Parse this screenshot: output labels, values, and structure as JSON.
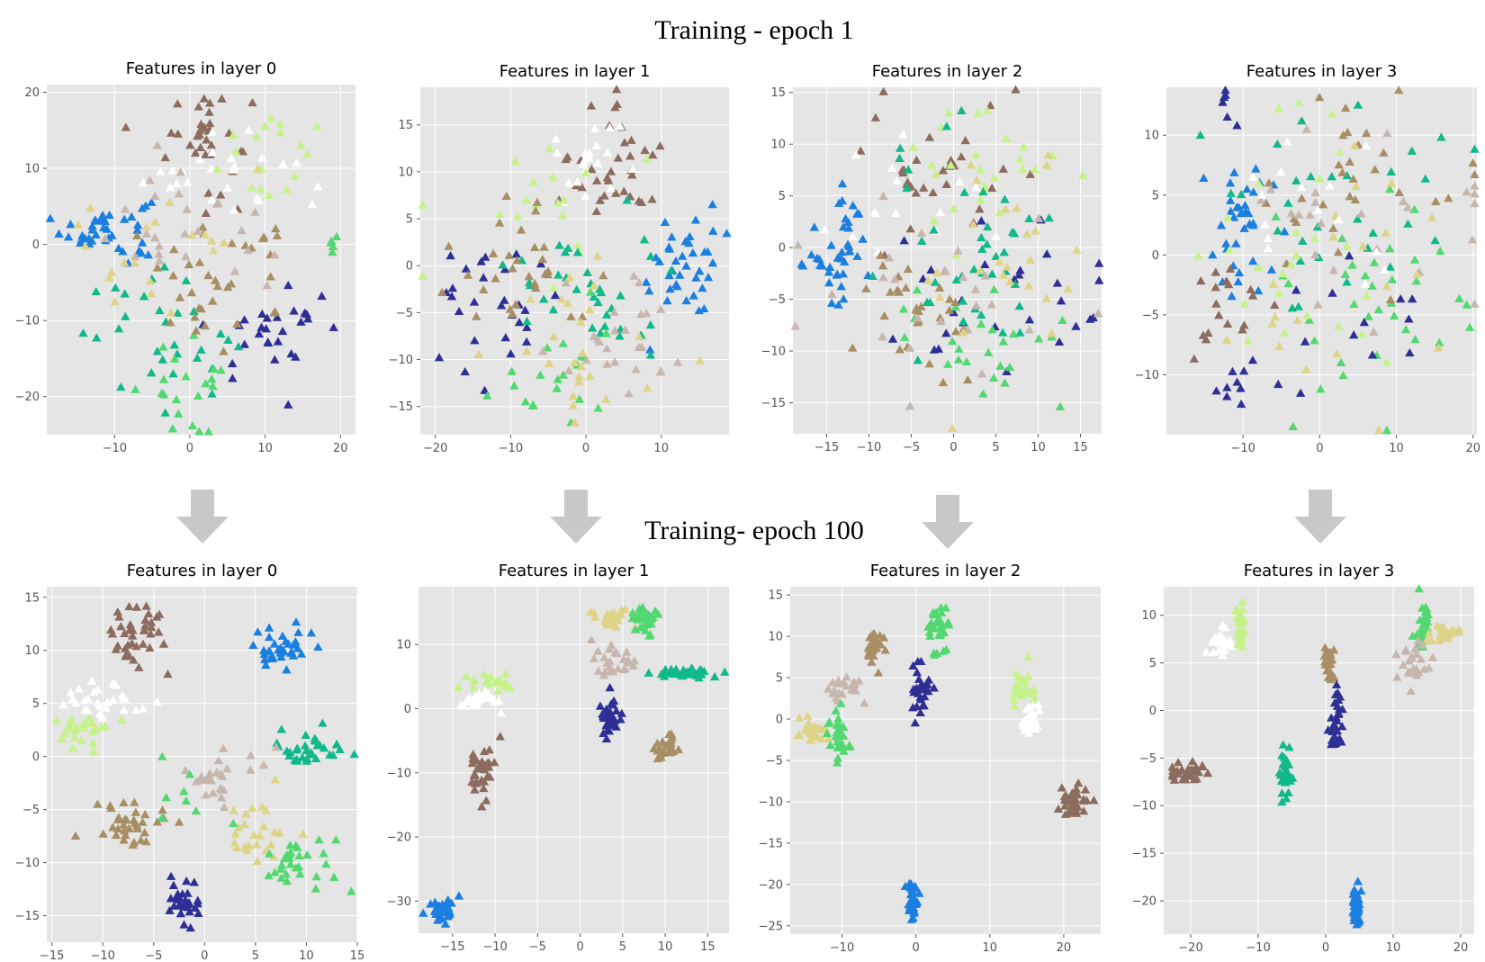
{
  "figure": {
    "top_title": "Training - epoch 1",
    "middle_title": "Training- epoch 100"
  },
  "colors": {
    "blue": "#1a7fe0",
    "navy": "#2e2f95",
    "teal": "#10b98a",
    "green": "#52d870",
    "lime": "#c6f28a",
    "white": "#ffffff",
    "sand": "#ddd486",
    "khaki": "#a88e64",
    "brown": "#8c6c5e",
    "taupe": "#c7b6ad"
  },
  "chart_data": [
    {
      "type": "scatter",
      "marker": "triangle",
      "title": "Features in layer 0",
      "epoch": 1,
      "xlim": [
        -19,
        22
      ],
      "ylim": [
        -25,
        21
      ],
      "xticks": [
        -10,
        0,
        10,
        20
      ],
      "yticks": [
        -20,
        -10,
        0,
        10,
        20
      ],
      "grid": true,
      "clusters": [
        {
          "color": "blue",
          "cx": -11,
          "cy": 2,
          "sx": 3.0,
          "sy": 2.2,
          "n": 40
        },
        {
          "color": "brown",
          "cx": 2,
          "cy": 14,
          "sx": 3.0,
          "sy": 3.5,
          "n": 35
        },
        {
          "color": "white",
          "cx": 4,
          "cy": 10,
          "sx": 5.0,
          "sy": 3.0,
          "n": 25
        },
        {
          "color": "lime",
          "cx": 10,
          "cy": 12,
          "sx": 4.0,
          "sy": 4.0,
          "n": 18
        },
        {
          "color": "navy",
          "cx": 11,
          "cy": -12,
          "sx": 4.5,
          "sy": 3.0,
          "n": 28
        },
        {
          "color": "teal",
          "cx": -4,
          "cy": -12,
          "sx": 5.0,
          "sy": 4.0,
          "n": 30
        },
        {
          "color": "green",
          "cx": 1,
          "cy": -19,
          "sx": 4.0,
          "sy": 3.0,
          "n": 20
        },
        {
          "color": "khaki",
          "cx": 4,
          "cy": -5,
          "sx": 6.0,
          "sy": 4.0,
          "n": 35
        },
        {
          "color": "taupe",
          "cx": -1,
          "cy": 1,
          "sx": 6.0,
          "sy": 4.0,
          "n": 25
        },
        {
          "color": "sand",
          "cx": -3,
          "cy": -1,
          "sx": 7.0,
          "sy": 5.0,
          "n": 20
        },
        {
          "color": "green",
          "cx": 19,
          "cy": 0.5,
          "sx": 0.6,
          "sy": 1.0,
          "n": 5
        }
      ]
    },
    {
      "type": "scatter",
      "marker": "triangle",
      "title": "Features in layer 1",
      "epoch": 1,
      "xlim": [
        -22,
        19
      ],
      "ylim": [
        -18,
        19
      ],
      "xticks": [
        -20,
        -10,
        0,
        10
      ],
      "yticks": [
        -15,
        -10,
        -5,
        0,
        5,
        10,
        15
      ],
      "grid": true,
      "clusters": [
        {
          "color": "blue",
          "cx": 13,
          "cy": 0,
          "sx": 2.5,
          "sy": 3.0,
          "n": 38
        },
        {
          "color": "brown",
          "cx": 4,
          "cy": 11,
          "sx": 3.0,
          "sy": 4.0,
          "n": 35
        },
        {
          "color": "white",
          "cx": 0,
          "cy": 11,
          "sx": 3.5,
          "sy": 2.5,
          "n": 20
        },
        {
          "color": "lime",
          "cx": -6,
          "cy": 8,
          "sx": 5.0,
          "sy": 4.0,
          "n": 18
        },
        {
          "color": "navy",
          "cx": -12,
          "cy": -5,
          "sx": 5.0,
          "sy": 4.0,
          "n": 28
        },
        {
          "color": "teal",
          "cx": 0,
          "cy": -3,
          "sx": 5.0,
          "sy": 4.0,
          "n": 35
        },
        {
          "color": "green",
          "cx": -5,
          "cy": -11,
          "sx": 4.5,
          "sy": 3.0,
          "n": 20
        },
        {
          "color": "khaki",
          "cx": -8,
          "cy": 0,
          "sx": 5.0,
          "sy": 3.5,
          "n": 30
        },
        {
          "color": "taupe",
          "cx": 3,
          "cy": -8,
          "sx": 6.0,
          "sy": 4.0,
          "n": 25
        },
        {
          "color": "sand",
          "cx": -1,
          "cy": -9,
          "sx": 6.0,
          "sy": 5.0,
          "n": 25
        }
      ]
    },
    {
      "type": "scatter",
      "marker": "triangle",
      "title": "Features in layer 2",
      "epoch": 1,
      "xlim": [
        -19,
        17.5
      ],
      "ylim": [
        -18,
        15.5
      ],
      "xticks": [
        -15,
        -10,
        -5,
        0,
        5,
        10,
        15
      ],
      "yticks": [
        -15,
        -10,
        -5,
        0,
        5,
        10,
        15
      ],
      "grid": true,
      "clusters": [
        {
          "color": "blue",
          "cx": -13,
          "cy": 0,
          "sx": 2.5,
          "sy": 3.0,
          "n": 40
        },
        {
          "color": "brown",
          "cx": -2,
          "cy": 8,
          "sx": 5.0,
          "sy": 4.0,
          "n": 30
        },
        {
          "color": "lime",
          "cx": 2,
          "cy": 6,
          "sx": 6.0,
          "sy": 4.0,
          "n": 25
        },
        {
          "color": "white",
          "cx": -6,
          "cy": 4,
          "sx": 5.0,
          "sy": 4.0,
          "n": 15
        },
        {
          "color": "navy",
          "cx": 7,
          "cy": -6,
          "sx": 6.0,
          "sy": 5.0,
          "n": 28
        },
        {
          "color": "teal",
          "cx": 2,
          "cy": 0,
          "sx": 6.0,
          "sy": 5.0,
          "n": 40
        },
        {
          "color": "green",
          "cx": 3,
          "cy": -10,
          "sx": 5.0,
          "sy": 3.0,
          "n": 25
        },
        {
          "color": "khaki",
          "cx": -5,
          "cy": -7,
          "sx": 4.0,
          "sy": 3.5,
          "n": 30
        },
        {
          "color": "taupe",
          "cx": 0,
          "cy": -4,
          "sx": 8.0,
          "sy": 5.0,
          "n": 25
        },
        {
          "color": "sand",
          "cx": 6,
          "cy": -1,
          "sx": 6.0,
          "sy": 5.0,
          "n": 25
        }
      ]
    },
    {
      "type": "scatter",
      "marker": "triangle",
      "title": "Features in layer 3",
      "epoch": 1,
      "xlim": [
        -20,
        20.5
      ],
      "ylim": [
        -15,
        14
      ],
      "xticks": [
        -10,
        0,
        10,
        20
      ],
      "yticks": [
        -10,
        -5,
        0,
        5,
        10
      ],
      "grid": true,
      "clusters": [
        {
          "color": "blue",
          "cx": -11,
          "cy": 2,
          "sx": 2.5,
          "sy": 3.0,
          "n": 35
        },
        {
          "color": "navy",
          "cx": -11,
          "cy": -11,
          "sx": 2.0,
          "sy": 1.5,
          "n": 10
        },
        {
          "color": "navy",
          "cx": -12,
          "cy": 12,
          "sx": 1.0,
          "sy": 1.0,
          "n": 6
        },
        {
          "color": "brown",
          "cx": -13,
          "cy": -6,
          "sx": 3.0,
          "sy": 3.0,
          "n": 18
        },
        {
          "color": "teal",
          "cx": 3,
          "cy": 5,
          "sx": 8.0,
          "sy": 5.0,
          "n": 30
        },
        {
          "color": "green",
          "cx": 8,
          "cy": -3,
          "sx": 7.0,
          "sy": 5.0,
          "n": 35
        },
        {
          "color": "khaki",
          "cx": 5,
          "cy": 5,
          "sx": 6.0,
          "sy": 4.0,
          "n": 30
        },
        {
          "color": "lime",
          "cx": -2,
          "cy": 0,
          "sx": 7.0,
          "sy": 5.0,
          "n": 25
        },
        {
          "color": "taupe",
          "cx": 5,
          "cy": 2,
          "sx": 8.0,
          "sy": 5.0,
          "n": 25
        },
        {
          "color": "sand",
          "cx": 3,
          "cy": -2,
          "sx": 8.0,
          "sy": 6.0,
          "n": 20
        },
        {
          "color": "white",
          "cx": 1,
          "cy": 4,
          "sx": 8.0,
          "sy": 5.0,
          "n": 15
        },
        {
          "color": "navy",
          "cx": 5,
          "cy": -6,
          "sx": 6.0,
          "sy": 4.0,
          "n": 12
        }
      ]
    },
    {
      "type": "scatter",
      "marker": "triangle",
      "title": "Features in layer 0",
      "epoch": 100,
      "xlim": [
        -15.5,
        15
      ],
      "ylim": [
        -17.5,
        16
      ],
      "xticks": [
        -15,
        -10,
        -5,
        0,
        5,
        10,
        15
      ],
      "yticks": [
        -15,
        -10,
        -5,
        0,
        5,
        10,
        15
      ],
      "grid": true,
      "clusters": [
        {
          "color": "brown",
          "cx": -6.5,
          "cy": 12,
          "sx": 1.2,
          "sy": 2.0,
          "n": 40
        },
        {
          "color": "blue",
          "cx": 7.5,
          "cy": 10,
          "sx": 1.5,
          "sy": 1.0,
          "n": 35
        },
        {
          "color": "white",
          "cx": -10.5,
          "cy": 5.5,
          "sx": 2.0,
          "sy": 1.0,
          "n": 30
        },
        {
          "color": "lime",
          "cx": -12,
          "cy": 2.5,
          "sx": 2.0,
          "sy": 1.0,
          "n": 28
        },
        {
          "color": "teal",
          "cx": 10.5,
          "cy": 0.5,
          "sx": 2.2,
          "sy": 0.8,
          "n": 35
        },
        {
          "color": "khaki",
          "cx": -7.5,
          "cy": -6.5,
          "sx": 1.8,
          "sy": 1.2,
          "n": 35
        },
        {
          "color": "taupe",
          "cx": 1.5,
          "cy": -2,
          "sx": 2.0,
          "sy": 1.5,
          "n": 25
        },
        {
          "color": "sand",
          "cx": 5,
          "cy": -7,
          "sx": 2.0,
          "sy": 1.5,
          "n": 25
        },
        {
          "color": "green",
          "cx": 8.5,
          "cy": -10,
          "sx": 2.0,
          "sy": 1.3,
          "n": 30
        },
        {
          "color": "navy",
          "cx": -2,
          "cy": -14,
          "sx": 0.8,
          "sy": 1.5,
          "n": 30
        },
        {
          "color": "green",
          "cx": -2,
          "cy": -5,
          "sx": 2.5,
          "sy": 2.0,
          "n": 8
        }
      ]
    },
    {
      "type": "scatter",
      "marker": "triangle",
      "title": "Features in layer 1",
      "epoch": 100,
      "xlim": [
        -19,
        17.5
      ],
      "ylim": [
        -35,
        19
      ],
      "xticks": [
        -15,
        -10,
        -5,
        0,
        5,
        10,
        15
      ],
      "yticks": [
        -30,
        -20,
        -10,
        0,
        10
      ],
      "grid": true,
      "clusters": [
        {
          "color": "sand",
          "cx": 3.5,
          "cy": 14,
          "sx": 1.2,
          "sy": 0.8,
          "n": 25
        },
        {
          "color": "green",
          "cx": 7.5,
          "cy": 14,
          "sx": 0.8,
          "sy": 1.2,
          "n": 30
        },
        {
          "color": "teal",
          "cx": 12,
          "cy": 5.5,
          "sx": 2.0,
          "sy": 0.4,
          "n": 40
        },
        {
          "color": "lime",
          "cx": -11,
          "cy": 4,
          "sx": 1.5,
          "sy": 0.8,
          "n": 25
        },
        {
          "color": "white",
          "cx": -12,
          "cy": 1,
          "sx": 1.2,
          "sy": 0.8,
          "n": 25
        },
        {
          "color": "taupe",
          "cx": 4,
          "cy": 7,
          "sx": 1.2,
          "sy": 1.0,
          "n": 25
        },
        {
          "color": "navy",
          "cx": 3.5,
          "cy": -1,
          "sx": 0.6,
          "sy": 1.5,
          "n": 30
        },
        {
          "color": "khaki",
          "cx": 10,
          "cy": -6,
          "sx": 0.8,
          "sy": 1.2,
          "n": 30
        },
        {
          "color": "brown",
          "cx": -11.5,
          "cy": -9,
          "sx": 0.8,
          "sy": 1.8,
          "n": 35
        },
        {
          "color": "blue",
          "cx": -16.5,
          "cy": -31.5,
          "sx": 0.8,
          "sy": 0.8,
          "n": 35
        }
      ]
    },
    {
      "type": "scatter",
      "marker": "triangle",
      "title": "Features in layer 2",
      "epoch": 100,
      "xlim": [
        -17,
        25
      ],
      "ylim": [
        -26,
        16
      ],
      "xticks": [
        -10,
        0,
        10,
        20
      ],
      "yticks": [
        -25,
        -20,
        -15,
        -10,
        -5,
        0,
        5,
        10,
        15
      ],
      "grid": true,
      "clusters": [
        {
          "color": "green",
          "cx": 3,
          "cy": 11,
          "sx": 0.8,
          "sy": 1.5,
          "n": 35
        },
        {
          "color": "khaki",
          "cx": -5.5,
          "cy": 9,
          "sx": 0.6,
          "sy": 1.5,
          "n": 30
        },
        {
          "color": "taupe",
          "cx": -10,
          "cy": 3.5,
          "sx": 1.2,
          "sy": 0.6,
          "n": 25
        },
        {
          "color": "navy",
          "cx": 0.5,
          "cy": 3.5,
          "sx": 0.6,
          "sy": 1.3,
          "n": 30
        },
        {
          "color": "lime",
          "cx": 14.5,
          "cy": 3.5,
          "sx": 0.8,
          "sy": 1.0,
          "n": 25
        },
        {
          "color": "white",
          "cx": 15.5,
          "cy": 0,
          "sx": 0.6,
          "sy": 1.0,
          "n": 25
        },
        {
          "color": "sand",
          "cx": -14,
          "cy": -1.5,
          "sx": 1.2,
          "sy": 0.8,
          "n": 25
        },
        {
          "color": "green",
          "cx": -10.5,
          "cy": -2,
          "sx": 0.6,
          "sy": 1.8,
          "n": 30
        },
        {
          "color": "brown",
          "cx": 21.5,
          "cy": -10,
          "sx": 1.2,
          "sy": 1.0,
          "n": 35
        },
        {
          "color": "blue",
          "cx": -0.5,
          "cy": -22,
          "sx": 0.4,
          "sy": 1.2,
          "n": 35
        }
      ]
    },
    {
      "type": "scatter",
      "marker": "triangle",
      "title": "Features in layer 3",
      "epoch": 100,
      "xlim": [
        -24,
        22
      ],
      "ylim": [
        -23.5,
        13
      ],
      "xticks": [
        -20,
        -10,
        0,
        10,
        20
      ],
      "yticks": [
        -20,
        -15,
        -10,
        -5,
        0,
        5,
        10
      ],
      "grid": true,
      "clusters": [
        {
          "color": "white",
          "cx": -15.5,
          "cy": 7,
          "sx": 0.8,
          "sy": 0.8,
          "n": 25
        },
        {
          "color": "lime",
          "cx": -12.5,
          "cy": 8.5,
          "sx": 0.4,
          "sy": 1.3,
          "n": 25
        },
        {
          "color": "green",
          "cx": 14.5,
          "cy": 9,
          "sx": 0.6,
          "sy": 1.5,
          "n": 30
        },
        {
          "color": "sand",
          "cx": 18,
          "cy": 8,
          "sx": 1.2,
          "sy": 0.5,
          "n": 25
        },
        {
          "color": "taupe",
          "cx": 13,
          "cy": 5,
          "sx": 1.0,
          "sy": 1.0,
          "n": 25
        },
        {
          "color": "khaki",
          "cx": 0.5,
          "cy": 5,
          "sx": 0.4,
          "sy": 1.0,
          "n": 25
        },
        {
          "color": "navy",
          "cx": 1.5,
          "cy": -1,
          "sx": 0.5,
          "sy": 1.5,
          "n": 30
        },
        {
          "color": "brown",
          "cx": -20.5,
          "cy": -6.5,
          "sx": 1.5,
          "sy": 0.5,
          "n": 35
        },
        {
          "color": "teal",
          "cx": -6,
          "cy": -7,
          "sx": 0.4,
          "sy": 1.5,
          "n": 30
        },
        {
          "color": "blue",
          "cx": 4.5,
          "cy": -20.5,
          "sx": 0.4,
          "sy": 1.2,
          "n": 35
        }
      ]
    }
  ]
}
